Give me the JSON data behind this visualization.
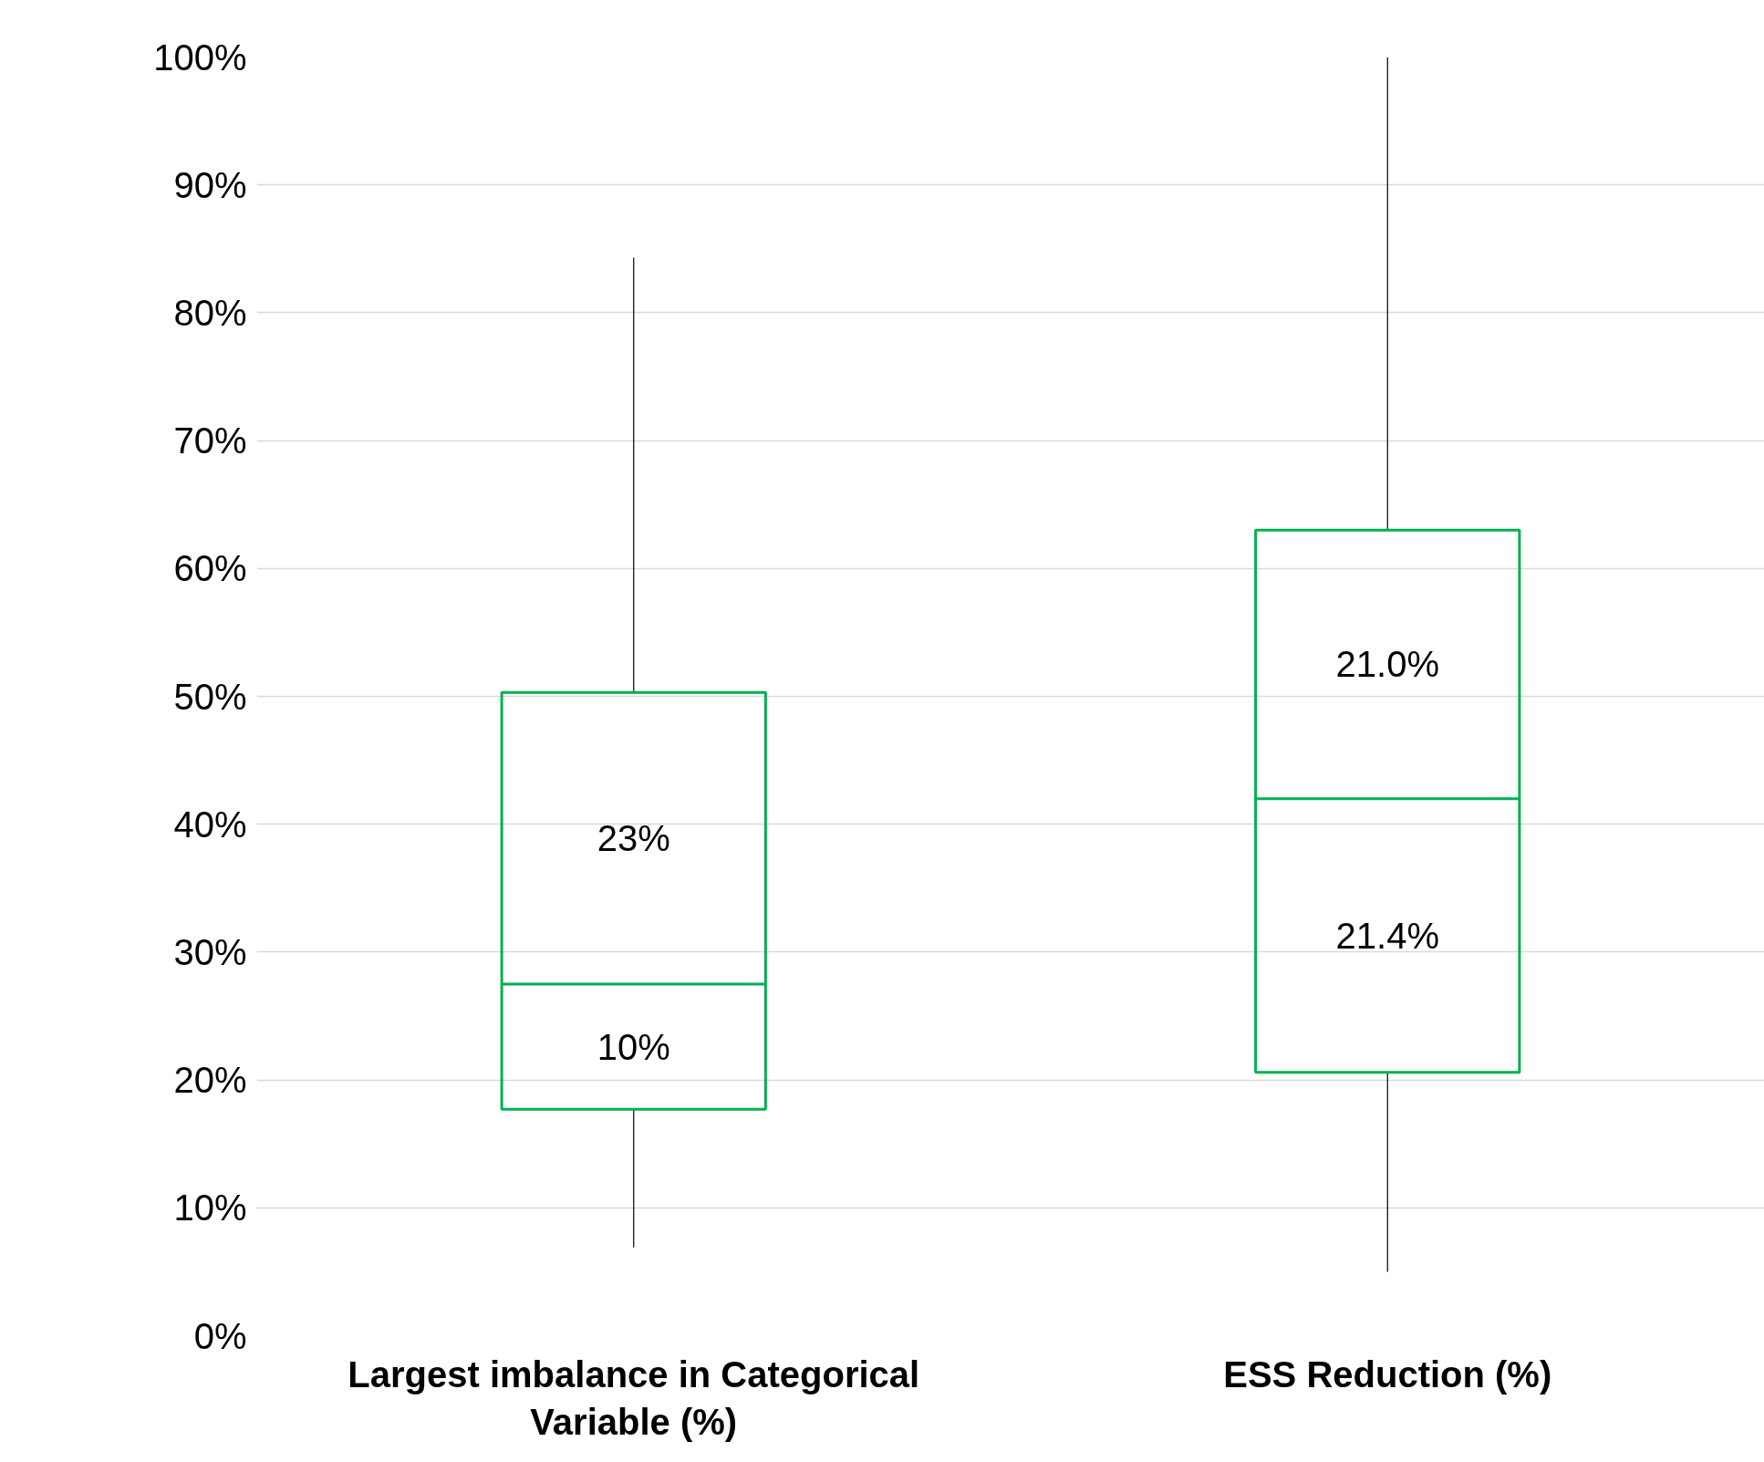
{
  "chart_data": {
    "type": "box",
    "categories": [
      "Largest imbalance in Categorical Variable (%)",
      "ESS Reduction (%)"
    ],
    "boxes": [
      {
        "low": 6.9,
        "q1": 17.7,
        "median": 27.5,
        "q3": 50.3,
        "high": 84.3
      },
      {
        "low": 5.0,
        "q1": 20.6,
        "median": 42.0,
        "q3": 63.0,
        "high": 100
      }
    ],
    "color": "#00b050",
    "ylim": [
      0,
      100
    ],
    "yticks": [
      {
        "value": 0,
        "label": "0%"
      },
      {
        "value": 10,
        "label": "10%"
      },
      {
        "value": 20,
        "label": "20%"
      },
      {
        "value": 30,
        "label": "30%"
      },
      {
        "value": 40,
        "label": "40%"
      },
      {
        "value": 50,
        "label": "50%"
      },
      {
        "value": 60,
        "label": "60%"
      },
      {
        "value": 70,
        "label": "70%"
      },
      {
        "value": 80,
        "label": "80%"
      },
      {
        "value": 90,
        "label": "90%"
      },
      {
        "value": 100,
        "label": "100%"
      }
    ],
    "grid": "y",
    "annotations": [
      "23%",
      "10%",
      "21.0%",
      "21.4%"
    ]
  }
}
